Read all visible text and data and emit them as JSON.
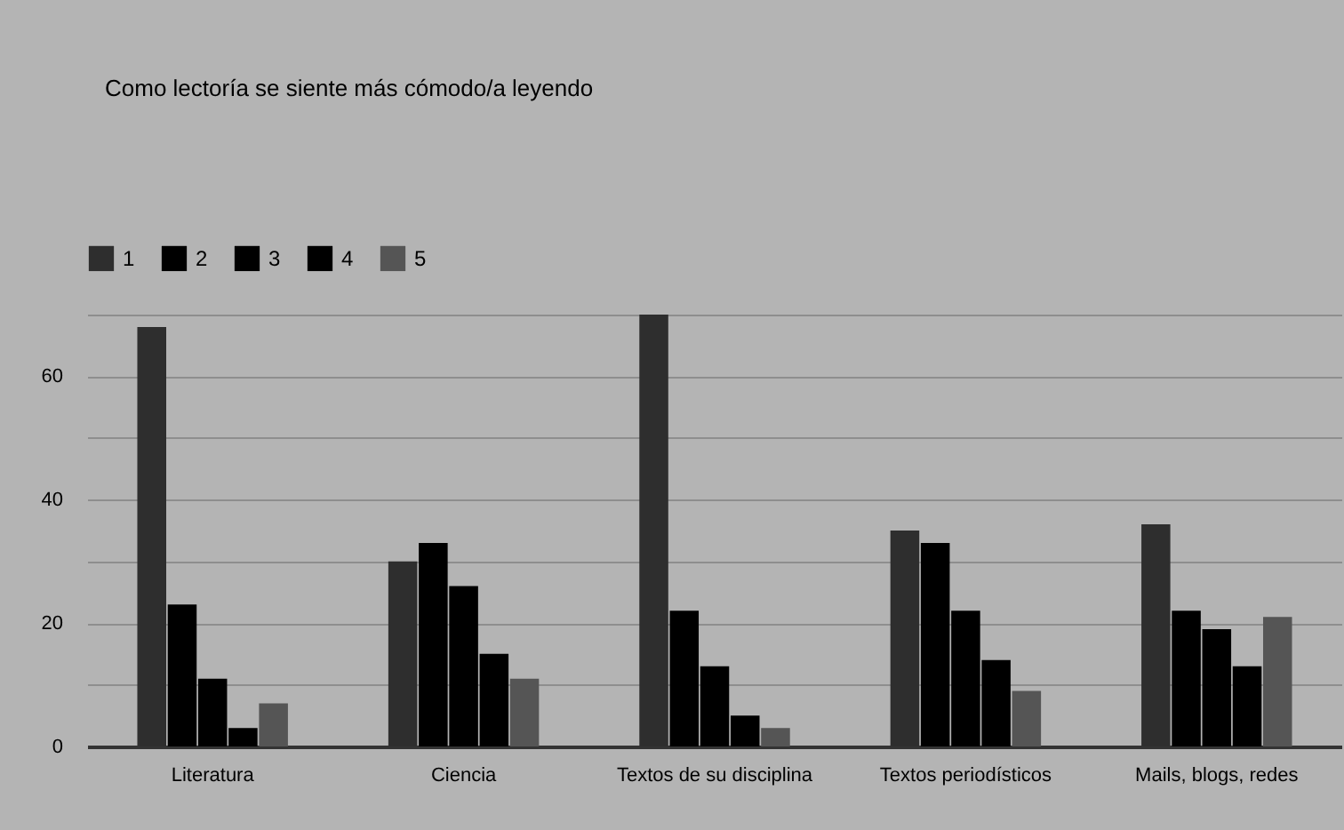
{
  "chart_data": {
    "type": "bar",
    "title": "Como lectoría se siente más cómodo/a  leyendo",
    "categories": [
      "Literatura",
      "Ciencia",
      "Textos de su disciplina",
      "Textos periodísticos",
      "Mails, blogs, redes"
    ],
    "series": [
      {
        "name": "1",
        "color": "#2e2e2e",
        "values": [
          68,
          30,
          70,
          35,
          36
        ]
      },
      {
        "name": "2",
        "color": "#000000",
        "values": [
          23,
          33,
          22,
          33,
          22
        ]
      },
      {
        "name": "3",
        "color": "#000000",
        "values": [
          11,
          26,
          13,
          22,
          19
        ]
      },
      {
        "name": "4",
        "color": "#000000",
        "values": [
          3,
          15,
          5,
          14,
          13
        ]
      },
      {
        "name": "5",
        "color": "#555555",
        "values": [
          7,
          11,
          3,
          9,
          21
        ]
      }
    ],
    "ylim": [
      0,
      70
    ],
    "yticks": [
      0,
      {
        "value": 10,
        "label": null
      },
      20,
      {
        "value": 30,
        "label": null
      },
      40,
      {
        "value": 50,
        "label": null
      },
      60,
      {
        "value": 70,
        "label": null
      }
    ],
    "grid": "y",
    "legend": "top left"
  }
}
